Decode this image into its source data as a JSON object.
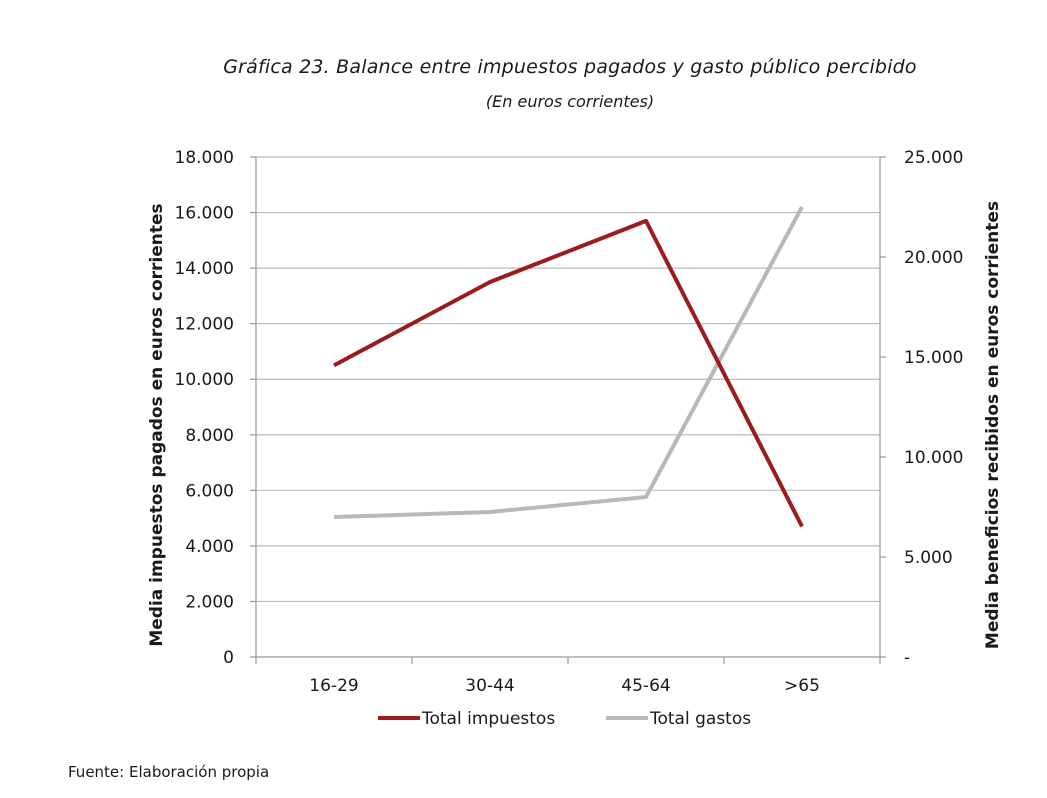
{
  "chart_data": {
    "type": "line",
    "title": "Gráfica 23. Balance entre impuestos pagados y gasto público percibido",
    "subtitle": "(En euros corrientes)",
    "categories": [
      "16-29",
      "30-44",
      "45-64",
      ">65"
    ],
    "y_left": {
      "label": "Media impuestos pagados en euros corrientes",
      "min": 0,
      "max": 18000,
      "step": 2000,
      "tick_labels": [
        "0",
        "2.000",
        "4.000",
        "6.000",
        "8.000",
        "10.000",
        "12.000",
        "14.000",
        "16.000",
        "18.000"
      ]
    },
    "y_right": {
      "label": "Media beneficios recibidos en  euros corrientes",
      "min": 0,
      "max": 25000,
      "step": 5000,
      "tick_labels": [
        "-",
        "5.000",
        "10.000",
        "15.000",
        "20.000",
        "25.000"
      ]
    },
    "series": [
      {
        "name": "Total impuestos",
        "axis": "left",
        "color": "#9b1c1c",
        "values": [
          10500,
          13500,
          15700,
          4700
        ]
      },
      {
        "name": "Total gastos",
        "axis": "right",
        "color": "#b8b8b8",
        "values": [
          7000,
          7250,
          8000,
          22500
        ]
      }
    ],
    "grid": true,
    "legend": "bottom-center"
  },
  "source": "Fuente: Elaboración propia"
}
